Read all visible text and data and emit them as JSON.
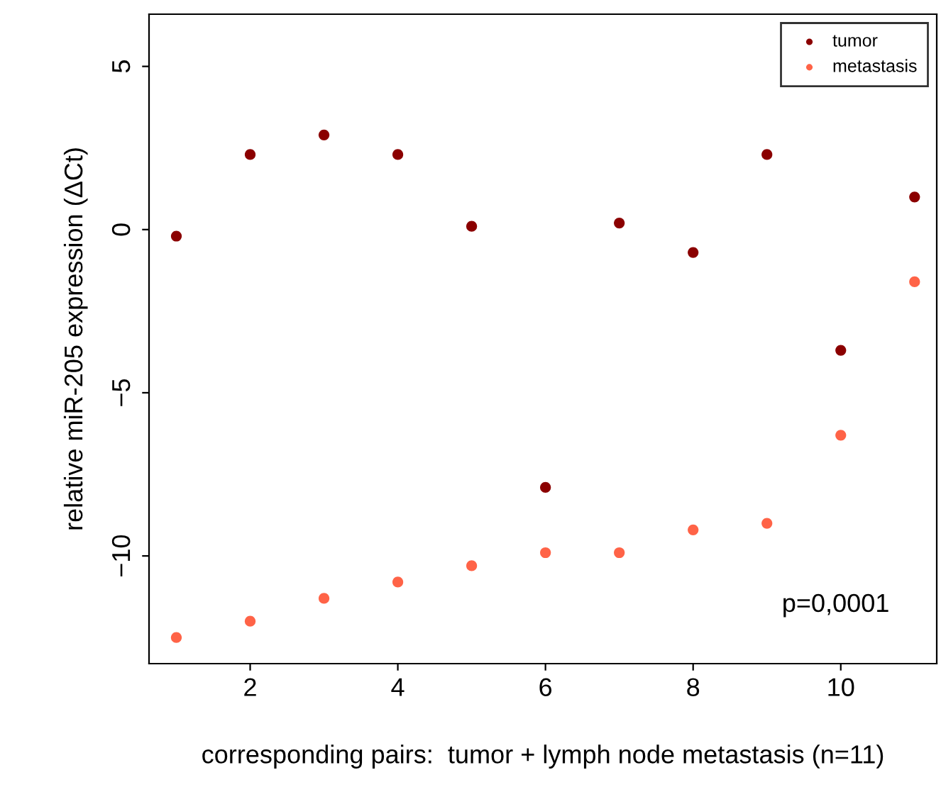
{
  "chart_data": {
    "type": "scatter",
    "xlabel": "corresponding pairs:  tumor + lymph node metastasis (n=11)",
    "ylabel": "relative miR-205 expression (ΔCt)",
    "x": [
      1,
      2,
      3,
      4,
      5,
      6,
      7,
      8,
      9,
      10,
      11
    ],
    "series": [
      {
        "name": "tumor",
        "color": "#8b0000",
        "values": [
          -0.2,
          2.3,
          2.9,
          2.3,
          0.1,
          -7.9,
          0.2,
          -0.7,
          2.3,
          -3.7,
          1.0
        ]
      },
      {
        "name": "metastasis",
        "color": "#ff6347",
        "values": [
          -12.5,
          -12.0,
          -11.3,
          -10.8,
          -10.3,
          -9.9,
          -9.9,
          -9.2,
          -9.0,
          -6.3,
          -1.6
        ]
      }
    ],
    "xlim": [
      0.63,
      11.3
    ],
    "ylim": [
      -13.3,
      6.6
    ],
    "xticks": [
      2,
      4,
      6,
      8,
      10
    ],
    "yticks": [
      -10,
      -5,
      0,
      5
    ],
    "annotations": [
      "p=0,0001"
    ],
    "legend": "top right",
    "marker": "circle",
    "grid": false
  }
}
